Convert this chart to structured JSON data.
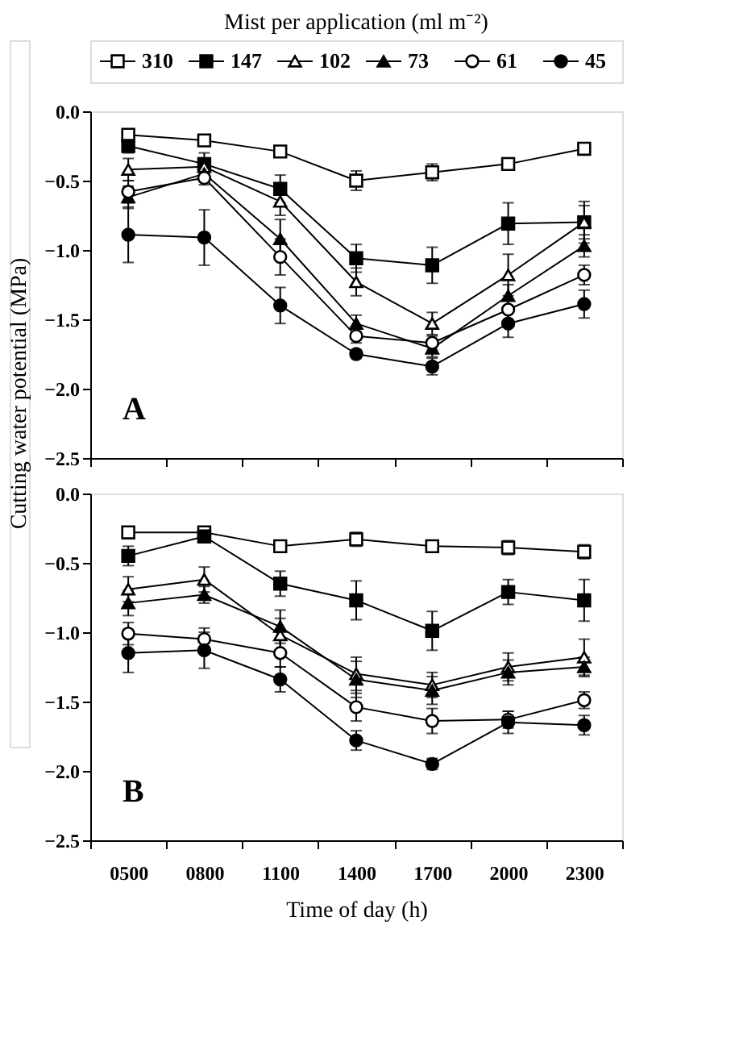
{
  "chart_data": [
    {
      "type": "line",
      "ylabel": "Cutting water potential (MPa)",
      "legend_title": "Mist per application (ml m⁻²)",
      "legend": "top",
      "annotations": [
        "A"
      ],
      "categories": [
        "0500",
        "0800",
        "1100",
        "1400",
        "1700",
        "2000",
        "2300"
      ],
      "ylim": [
        -2.5,
        0
      ],
      "yticks": [
        {
          "value": -2.5,
          "label": "−2.5"
        },
        {
          "value": -2.0,
          "label": "−2.0"
        },
        {
          "value": -1.5,
          "label": "−1.5"
        },
        {
          "value": -1.0,
          "label": "−1.0"
        },
        {
          "value": -0.5,
          "label": "−0.5"
        },
        {
          "value": 0,
          "label": "0.0"
        }
      ],
      "tick_labels": "y",
      "grid": false,
      "series": [
        {
          "name": "310",
          "color": "#000000",
          "marker": "square",
          "values": [
            -0.17,
            -0.21,
            -0.29,
            -0.5,
            -0.44,
            -0.38,
            -0.27
          ],
          "errors": [
            0.03,
            0.03,
            0.03,
            0.07,
            0.06,
            0.03,
            0.03
          ]
        },
        {
          "name": "147",
          "color": "#000000",
          "marker": "square",
          "values": [
            -0.25,
            -0.38,
            -0.56,
            -1.06,
            -1.11,
            -0.81,
            -0.8
          ],
          "errors": [
            0.05,
            0.08,
            0.1,
            0.1,
            0.13,
            0.15,
            0.15
          ]
        },
        {
          "name": "102",
          "color": "#000000",
          "marker": "triangle",
          "values": [
            -0.42,
            -0.4,
            -0.65,
            -1.23,
            -1.53,
            -1.18,
            -0.8
          ],
          "errors": [
            0.08,
            0.05,
            0.1,
            0.1,
            0.08,
            0.15,
            0.12
          ]
        },
        {
          "name": "73",
          "color": "#000000",
          "marker": "triangle",
          "values": [
            -0.62,
            -0.45,
            -0.92,
            -1.53,
            -1.71,
            -1.33,
            -0.97
          ],
          "errors": [
            0.08,
            0.05,
            0.14,
            0.06,
            0.06,
            0.08,
            0.08
          ]
        },
        {
          "name": "61",
          "color": "#000000",
          "marker": "circle",
          "values": [
            -0.58,
            -0.48,
            -1.05,
            -1.62,
            -1.67,
            -1.43,
            -1.18
          ],
          "errors": [
            0.08,
            0.05,
            0.13,
            0.05,
            0.05,
            0.08,
            0.07
          ]
        },
        {
          "name": "45",
          "color": "#000000",
          "marker": "circle",
          "values": [
            -0.89,
            -0.91,
            -1.4,
            -1.75,
            -1.84,
            -1.53,
            -1.39
          ],
          "errors": [
            0.2,
            0.2,
            0.13,
            0.03,
            0.06,
            0.1,
            0.1
          ]
        }
      ]
    },
    {
      "type": "line",
      "xlabel": "Time of day (h)",
      "annotations": [
        "B"
      ],
      "categories": [
        "0500",
        "0800",
        "1100",
        "1400",
        "1700",
        "2000",
        "2300"
      ],
      "ylim": [
        -2.5,
        0
      ],
      "yticks": [
        {
          "value": -2.5,
          "label": "−2.5"
        },
        {
          "value": -2.0,
          "label": "−2.0"
        },
        {
          "value": -1.5,
          "label": "−1.5"
        },
        {
          "value": -1.0,
          "label": "−1.0"
        },
        {
          "value": -0.5,
          "label": "−0.5"
        },
        {
          "value": 0,
          "label": "0.0"
        }
      ],
      "grid": false,
      "series": [
        {
          "name": "310",
          "color": "#000000",
          "marker": "square",
          "values": [
            -0.28,
            -0.28,
            -0.38,
            -0.33,
            -0.38,
            -0.39,
            -0.42
          ],
          "errors": [
            0.03,
            0.03,
            0.04,
            0.05,
            0.04,
            0.05,
            0.05
          ]
        },
        {
          "name": "147",
          "color": "#000000",
          "marker": "square",
          "values": [
            -0.45,
            -0.31,
            -0.65,
            -0.77,
            -0.99,
            -0.71,
            -0.77
          ],
          "errors": [
            0.07,
            0.04,
            0.09,
            0.14,
            0.14,
            0.09,
            0.15
          ]
        },
        {
          "name": "102",
          "color": "#000000",
          "marker": "triangle",
          "values": [
            -0.69,
            -0.62,
            -1.02,
            -1.3,
            -1.38,
            -1.25,
            -1.18
          ],
          "errors": [
            0.09,
            0.09,
            0.12,
            0.12,
            0.09,
            0.1,
            0.13
          ]
        },
        {
          "name": "73",
          "color": "#000000",
          "marker": "triangle",
          "values": [
            -0.79,
            -0.73,
            -0.96,
            -1.34,
            -1.42,
            -1.29,
            -1.25
          ],
          "errors": [
            0.09,
            0.06,
            0.12,
            0.13,
            0.1,
            0.09,
            0.07
          ]
        },
        {
          "name": "61",
          "color": "#000000",
          "marker": "circle",
          "values": [
            -1.01,
            -1.05,
            -1.15,
            -1.54,
            -1.64,
            -1.63,
            -1.49
          ],
          "errors": [
            0.08,
            0.08,
            0.1,
            0.1,
            0.09,
            0.06,
            0.06
          ]
        },
        {
          "name": "45",
          "color": "#000000",
          "marker": "circle",
          "values": [
            -1.15,
            -1.13,
            -1.34,
            -1.78,
            -1.95,
            -1.65,
            -1.67
          ],
          "errors": [
            0.14,
            0.13,
            0.09,
            0.07,
            0.04,
            0.08,
            0.07
          ]
        }
      ]
    }
  ]
}
